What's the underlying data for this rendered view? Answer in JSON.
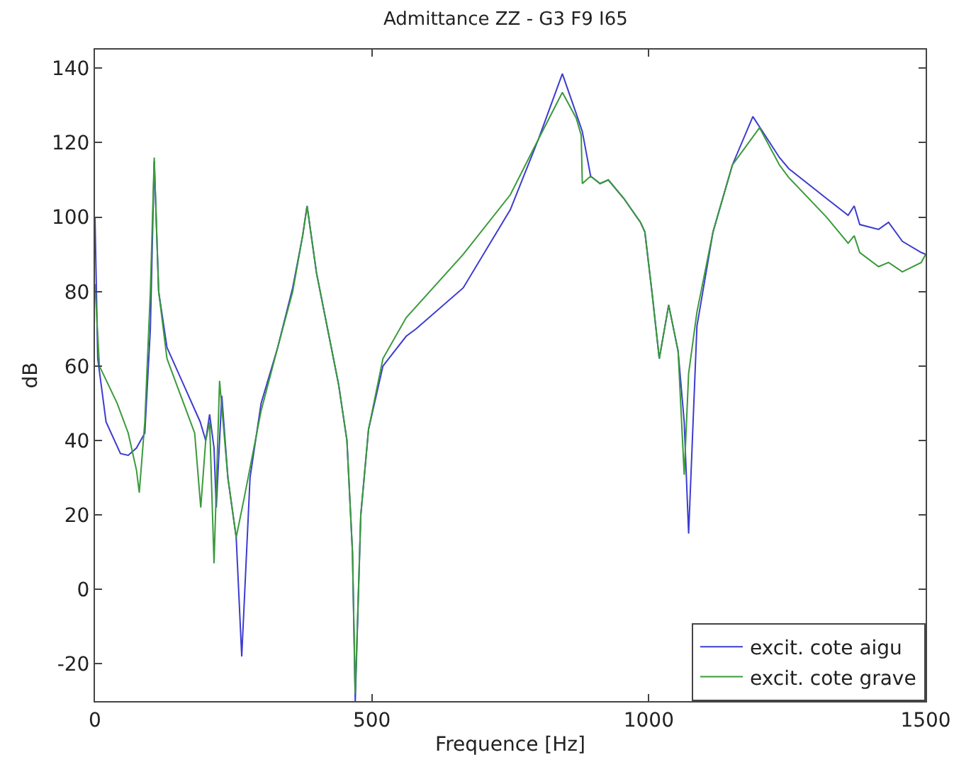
{
  "chart_data": {
    "type": "line",
    "title": "Admittance ZZ - G3 F9 I65",
    "xlabel": "Frequence [Hz]",
    "ylabel": "dB",
    "xlim": [
      0,
      1500
    ],
    "xticks": [
      0,
      500,
      1000,
      1500
    ],
    "ylim": [
      -30,
      145
    ],
    "yticks": [
      -20,
      0,
      20,
      40,
      60,
      80,
      100,
      120,
      140
    ],
    "grid": false,
    "legend": "bottom right",
    "marker": "none",
    "line_style": "solid",
    "series": [
      {
        "name": "excit. cote aigu",
        "color": "#3c3cd0",
        "x": [
          0,
          5,
          20,
          46,
          60,
          75,
          90,
          100,
          107,
          115,
          130,
          160,
          190,
          200,
          207,
          215,
          219,
          229,
          240,
          255,
          265,
          280,
          300,
          330,
          357,
          375,
          383,
          400,
          420,
          440,
          455,
          465,
          470,
          480,
          494,
          520,
          562,
          580,
          665,
          750,
          801,
          844,
          869,
          880,
          895,
          912,
          927,
          955,
          985,
          993,
          1006,
          1019,
          1036,
          1053,
          1064,
          1072,
          1087,
          1116,
          1151,
          1188,
          1236,
          1253,
          1321,
          1360,
          1371,
          1381,
          1415,
          1433,
          1458,
          1492,
          1500
        ],
        "values": [
          100,
          62,
          45,
          36.5,
          36,
          38,
          42,
          70,
          115,
          80,
          65,
          55,
          45,
          40,
          47,
          38,
          22,
          52,
          30,
          14,
          -18,
          30,
          50,
          65,
          81,
          95,
          103,
          85,
          70,
          55,
          40,
          10,
          -30,
          20,
          43,
          60,
          68,
          70,
          81,
          102,
          121,
          138.5,
          127.8,
          123,
          111,
          109,
          110,
          105,
          98.6,
          96,
          79.6,
          62,
          76.4,
          64,
          45,
          15,
          70.7,
          96,
          114,
          127,
          116,
          113,
          105,
          100.5,
          103,
          98,
          96.7,
          98.6,
          93.5,
          90.5,
          90
        ]
      },
      {
        "name": "excit. cote grave",
        "color": "#3a9a3a",
        "x": [
          0,
          8,
          40,
          60,
          75,
          80,
          90,
          100,
          107,
          115,
          130,
          160,
          180,
          191,
          200,
          207,
          215,
          225,
          240,
          255,
          270,
          300,
          330,
          357,
          375,
          383,
          400,
          420,
          440,
          455,
          465,
          470,
          480,
          494,
          520,
          562,
          665,
          750,
          801,
          844,
          869,
          878,
          880,
          895,
          912,
          927,
          955,
          985,
          993,
          1006,
          1019,
          1036,
          1053,
          1064,
          1072,
          1087,
          1116,
          1151,
          1200,
          1236,
          1253,
          1321,
          1360,
          1371,
          1381,
          1415,
          1433,
          1458,
          1492,
          1500
        ],
        "values": [
          82,
          60,
          50,
          42,
          32,
          26,
          45,
          80,
          116,
          80,
          62,
          50,
          42,
          22,
          40,
          45,
          7,
          56,
          30,
          14,
          25,
          48,
          65,
          80,
          95,
          103,
          85,
          70,
          55,
          40,
          10,
          -28,
          20,
          43,
          62,
          73,
          90,
          106,
          121,
          133.5,
          126.6,
          122,
          109,
          111,
          109,
          110,
          105,
          98.6,
          96,
          79.6,
          62,
          76.4,
          64,
          30.8,
          58,
          74.5,
          96,
          114,
          124,
          114,
          110.6,
          100,
          93,
          95,
          90.5,
          86.7,
          87.8,
          85.3,
          87.8,
          90
        ]
      }
    ]
  }
}
